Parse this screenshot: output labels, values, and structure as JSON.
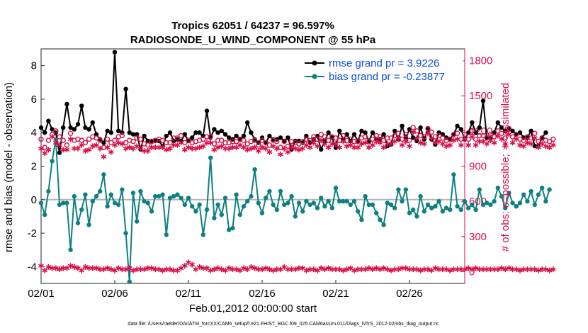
{
  "chart_data": {
    "type": "line",
    "title": "Tropics 62051 / 64237 = 96.597%",
    "subtitle": "RADIOSONDE_U_WIND_COMPONENT @ 55 hPa",
    "xlabel": "Feb.01,2012 00:00:00 start",
    "ylabel_left": "rmse and bias (model - observation)",
    "ylabel_right": "# of obs: o=possible; ∗=assimilated",
    "footnote": "data file: /Users/raeder/DAI/ATM_forcXX/CAM6_setup/f.e21.FHIST_BGC.f09_025.CAM6assim.011/Diags_NTrS_2012-02/obs_diag_output.nc",
    "xlim": [
      1,
      29.75
    ],
    "ylim_left": [
      -5.0,
      9.0
    ],
    "ylim_right": [
      -100,
      1900
    ],
    "x_ticks": [
      1,
      6,
      11,
      16,
      21,
      26
    ],
    "x_tick_labels": [
      "02/01",
      "02/06",
      "02/11",
      "02/16",
      "02/21",
      "02/26"
    ],
    "y_left_ticks": [
      -4,
      -2,
      0,
      2,
      4,
      6,
      8
    ],
    "y_left_tick_labels": [
      "-4",
      "-2",
      "0",
      "2",
      "4",
      "6",
      "8"
    ],
    "y_right_ticks": [
      0,
      300,
      600,
      900,
      1200,
      1500,
      1800
    ],
    "y_right_tick_labels": [
      "0",
      "300",
      "600",
      "900",
      "1200",
      "1500",
      "1800"
    ],
    "legend": [
      "rmse grand pr = 3.9226",
      "bias grand pr = -0.23877"
    ],
    "legend_position": "top-right",
    "x_start": 1.0,
    "x_step": 0.25,
    "series": [
      {
        "name": "rmse",
        "color": "#000000",
        "axis": "left",
        "values": [
          4.3,
          4.0,
          4.7,
          4.2,
          4.0,
          2.8,
          4.3,
          5.7,
          4.3,
          4.2,
          4.5,
          5.6,
          4.3,
          4.2,
          4.6,
          3.9,
          3.6,
          3.4,
          4.1,
          4.0,
          8.8,
          4.1,
          4.0,
          6.6,
          4.0,
          3.9,
          3.9,
          3.0,
          3.8,
          3.5,
          3.5,
          3.5,
          3.5,
          3.2,
          3.8,
          4.0,
          3.5,
          3.6,
          3.5,
          3.9,
          3.5,
          3.7,
          4.0,
          4.0,
          3.8,
          5.3,
          3.7,
          4.2,
          4.0,
          4.1,
          3.9,
          3.7,
          3.6,
          3.8,
          3.6,
          3.8,
          4.6,
          4.0,
          3.6,
          3.4,
          3.7,
          3.4,
          3.8,
          3.6,
          3.6,
          3.7,
          3.5,
          3.7,
          3.0,
          3.5,
          3.5,
          3.4,
          3.8,
          3.4,
          3.6,
          3.8,
          3.0,
          3.5,
          4.0,
          3.7,
          3.1,
          4.1,
          3.6,
          3.9,
          3.5,
          3.9,
          3.5,
          4.1,
          4.0,
          3.5,
          4.0,
          3.6,
          3.6,
          3.9,
          3.2,
          3.3,
          4.1,
          3.6,
          4.4,
          3.7,
          4.2,
          3.7,
          3.5,
          4.3,
          3.6,
          4.2,
          3.6,
          3.3,
          4.0,
          3.9,
          3.7,
          3.6,
          3.9,
          4.4,
          4.2,
          3.6,
          4.0,
          4.6,
          4.0,
          4.3,
          5.9,
          3.7,
          3.7,
          4.0,
          4.6,
          4.3,
          4.1,
          4.2,
          4.1,
          3.9,
          4.0,
          3.7,
          3.7,
          4.1,
          3.2,
          3.2,
          3.7,
          4.0
        ]
      },
      {
        "name": "bias",
        "color": "#0f8080",
        "axis": "left",
        "values": [
          -0.2,
          -0.9,
          0.5,
          2.3,
          3.6,
          -0.3,
          -0.2,
          -0.2,
          -3.0,
          0.2,
          -1.4,
          -0.6,
          0.3,
          -1.5,
          -0.1,
          0.2,
          0.5,
          1.5,
          -0.4,
          0.3,
          -0.2,
          -0.3,
          0.6,
          -2.0,
          -4.9,
          0.4,
          -1.3,
          0.5,
          -0.1,
          -0.2,
          -0.7,
          0.2,
          0.2,
          0.3,
          -2.1,
          0.1,
          0.2,
          0.3,
          0.1,
          -0.3,
          0.1,
          -0.4,
          -0.7,
          -0.3,
          -2.1,
          -0.6,
          2.5,
          -1.1,
          -0.3,
          -0.9,
          0.1,
          -1.8,
          -1.7,
          0.3,
          -0.9,
          -0.4,
          -0.1,
          0.2,
          1.8,
          -0.2,
          -0.8,
          0.1,
          0.5,
          -0.3,
          -0.6,
          0.5,
          -0.3,
          -0.2,
          0.2,
          -1.0,
          -0.2,
          -0.7,
          -0.1,
          -0.3,
          -0.2,
          -0.5,
          0.1,
          -0.4,
          -0.1,
          -0.5,
          0.7,
          -0.1,
          -0.1,
          -0.1,
          -0.3,
          -0.1,
          -0.7,
          -1.2,
          0.2,
          -0.3,
          -0.3,
          -0.8,
          -1.2,
          -1.5,
          -0.2,
          -0.3,
          -0.5,
          0.6,
          -0.1,
          0.6,
          -0.8,
          -0.6,
          -1.0,
          0.2,
          -0.7,
          -0.3,
          -0.5,
          -0.4,
          -0.1,
          -0.7,
          -0.5,
          -0.6,
          1.5,
          -0.4,
          -0.6,
          -0.1,
          -0.5,
          -0.3,
          -0.6,
          0.6,
          -0.3,
          -0.2,
          -0.3,
          -0.1,
          0.7,
          0.2,
          -0.5,
          0.4,
          -0.2,
          -0.4,
          -0.2,
          0.3,
          -0.1,
          0.5,
          -0.3,
          0.3,
          0.7,
          -0.1,
          0.6
        ]
      },
      {
        "name": "possible",
        "color": "#d6114b",
        "axis": "right",
        "values": [
          1130,
          1060,
          1120,
          1170,
          1200,
          1150,
          1120,
          1080,
          1180,
          1120,
          1130,
          1120,
          1100,
          1130,
          1150,
          1140,
          1120,
          1060,
          1130,
          1100,
          1120,
          1150,
          1160,
          1100,
          1120,
          1110,
          1140,
          1130,
          1090,
          1080,
          1110,
          1120,
          1130,
          1120,
          1100,
          1100,
          1140,
          1140,
          1160,
          1100,
          1120,
          1100,
          1110,
          1120,
          1130,
          1150,
          1150,
          1090,
          1120,
          1120,
          1100,
          1100,
          1110,
          1110,
          1130,
          1120,
          1090,
          1110,
          1120,
          1080,
          1120,
          1100,
          1080,
          1120,
          1110,
          1060,
          1110,
          1070,
          1110,
          1100,
          1090,
          1110,
          1130,
          1120,
          1150,
          1130,
          1170,
          1150,
          1120,
          1150,
          1140,
          1120,
          1160,
          1120,
          1130,
          1110,
          1110,
          1140,
          1150,
          1110,
          1130,
          1160,
          1150,
          1120,
          1140,
          1140,
          1160,
          1180,
          1130,
          1170,
          1120,
          1230,
          1200,
          1160,
          1150,
          1220,
          1190,
          1150,
          1160,
          1140,
          1120,
          1130,
          1170,
          1180,
          1130,
          1170,
          1130,
          1200,
          1130,
          1160,
          1160,
          1140,
          1170,
          1150,
          1200,
          1180,
          1140,
          1220,
          1150,
          1170,
          1130,
          1120,
          1150,
          1140,
          1180,
          1110,
          1140,
          1120,
          1110,
          1130
        ]
      },
      {
        "name": "assimilated",
        "color": "#d6114b",
        "axis": "right",
        "values": [
          1050,
          1010,
          1040,
          1150,
          1100,
          1080,
          1040,
          1040,
          1130,
          1050,
          1050,
          1080,
          1030,
          1040,
          1070,
          1080,
          1050,
          980,
          1060,
          1020,
          1080,
          1100,
          1090,
          1050,
          1060,
          1050,
          1070,
          1050,
          1030,
          1030,
          1060,
          1060,
          1060,
          1060,
          1040,
          1050,
          1080,
          1080,
          1100,
          1040,
          1060,
          1050,
          1050,
          1060,
          1070,
          1100,
          1100,
          1040,
          1060,
          1070,
          1050,
          1050,
          1060,
          1060,
          1080,
          1060,
          1040,
          1050,
          1060,
          1030,
          1060,
          1050,
          1020,
          1070,
          1050,
          1000,
          1050,
          1020,
          1060,
          1050,
          1040,
          1050,
          1080,
          1060,
          1100,
          1070,
          1120,
          1090,
          1060,
          1090,
          1090,
          1060,
          1110,
          1070,
          1080,
          1060,
          1060,
          1090,
          1100,
          1060,
          1080,
          1110,
          1100,
          1060,
          1090,
          1090,
          1110,
          1140,
          1080,
          1110,
          1070,
          1190,
          1140,
          1100,
          1090,
          1180,
          1140,
          1100,
          1110,
          1090,
          1070,
          1080,
          1120,
          1130,
          1080,
          1130,
          1080,
          1150,
          1080,
          1110,
          1110,
          1090,
          1120,
          1100,
          1160,
          1130,
          1090,
          1170,
          1100,
          1130,
          1080,
          1070,
          1100,
          1090,
          1140,
          1060,
          1090,
          1070,
          1060,
          1080
        ]
      },
      {
        "name": "assimilated_bottom",
        "color": "#d6114b",
        "axis": "right",
        "values": [
          50,
          10,
          40,
          30,
          30,
          20,
          30,
          30,
          50,
          40,
          30,
          10,
          40,
          30,
          30,
          30,
          20,
          20,
          30,
          20,
          10,
          30,
          20,
          20,
          30,
          10,
          20,
          20,
          20,
          30,
          30,
          20,
          20,
          10,
          20,
          20,
          10,
          10,
          30,
          50,
          80,
          60,
          20,
          40,
          30,
          30,
          10,
          20,
          30,
          20,
          10,
          30,
          20,
          20,
          10,
          30,
          20,
          40,
          30,
          20,
          20,
          30,
          20,
          10,
          20,
          20,
          40,
          20,
          20,
          20,
          30,
          30,
          10,
          20,
          20,
          10,
          30,
          20,
          30,
          20,
          20,
          20,
          10,
          20,
          30,
          10,
          20,
          20,
          20,
          30,
          20,
          30,
          20,
          30,
          20,
          10,
          20,
          20,
          30,
          30,
          20,
          20,
          20,
          10,
          20,
          20,
          10,
          30,
          20,
          20,
          20,
          10,
          20,
          20,
          20,
          20,
          30,
          20,
          30,
          20,
          20,
          20,
          20,
          20,
          20,
          30,
          20,
          30,
          20,
          20,
          10,
          20,
          20,
          20,
          20,
          10,
          20,
          20,
          10,
          20
        ]
      }
    ]
  }
}
